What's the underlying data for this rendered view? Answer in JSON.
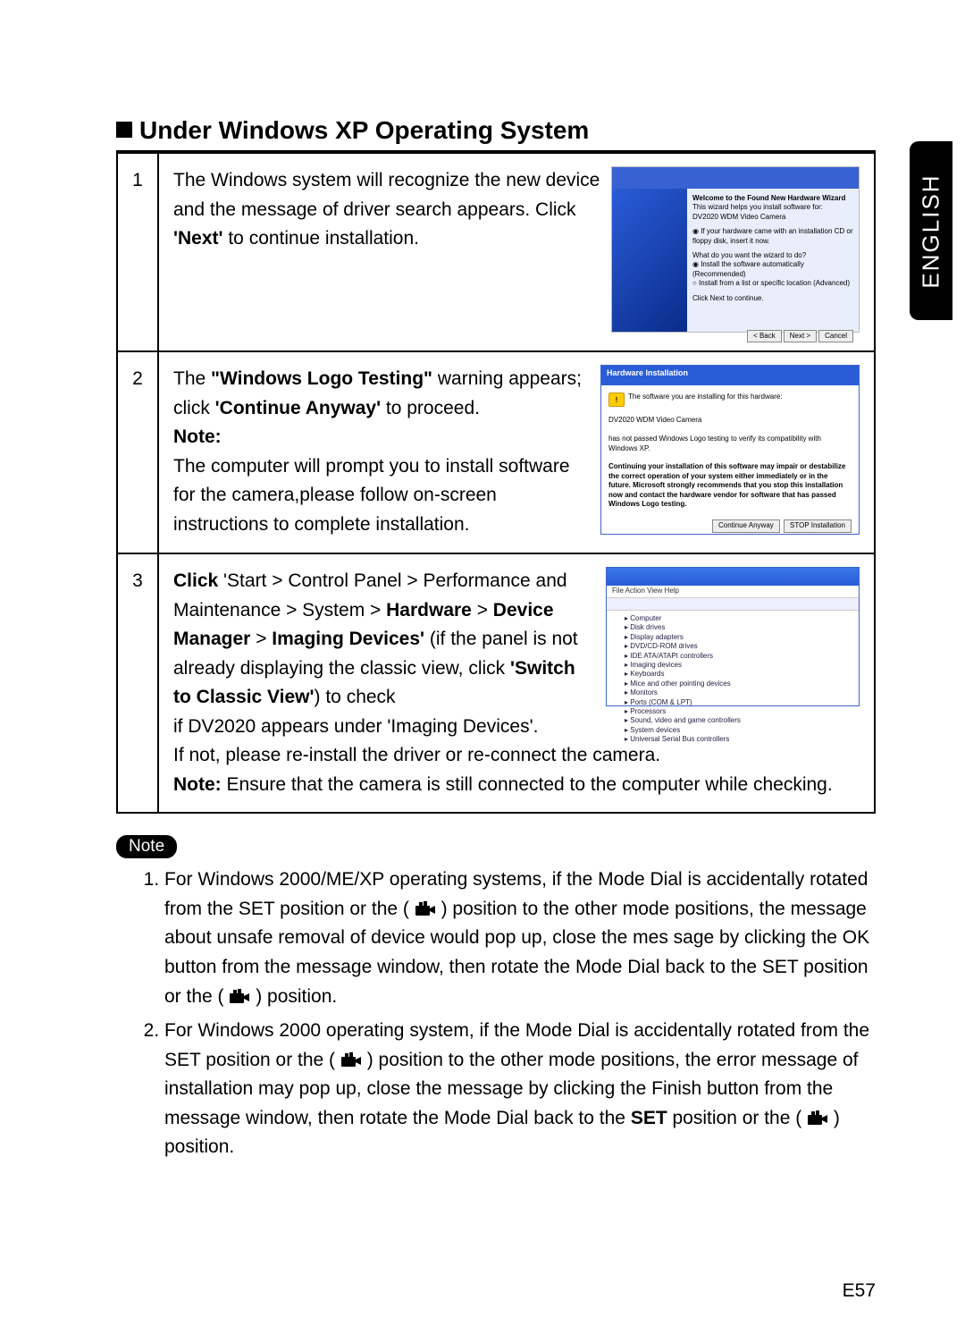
{
  "side_tab": "ENGLISH",
  "section_title": "Under Windows XP Operating System",
  "steps": [
    {
      "num": "1",
      "body_html": "The Windows system will recognize the new device and the message of driver search appears. Click <b>'Next'</b> to continue installation.",
      "screenshot": "wizard"
    },
    {
      "num": "2",
      "body_html": "The <b>\"Windows Logo Testing\"</b> warning appears; click <b>'Continue Anyway'</b> to proceed.<br><b>Note:</b><br>The computer will prompt you to install software for the camera,please follow on-screen instructions to complete installation.",
      "screenshot": "warning"
    },
    {
      "num": "3",
      "body_html": "<b>Click</b> 'Start > Control Panel > Performance and Maintenance > System > <b>Hardware</b> > <b>Device Manager</b> > <b>Imaging Devices'</b> (if the panel is not already displaying the classic view, click <b>'Switch to Classic View'</b>) to check<br>if DV2020 appears under 'Imaging Devices'.<br>If not, please re-install the driver or re-connect the camera.<br><b>Note:</b> Ensure that the camera is still connected to the computer while checking.",
      "screenshot": "devmgr"
    }
  ],
  "wizard": {
    "title": "Welcome to the Found New Hardware Wizard",
    "sub": "This wizard helps you install software for:",
    "dev": "DV2020 WDM Video Camera",
    "opt1": "If your hardware came with an installation CD or floppy disk, insert it now.",
    "q": "What do you want the wizard to do?",
    "r1": "Install the software automatically (Recommended)",
    "r2": "Install from a list or specific location (Advanced)",
    "cont": "Click Next to continue.",
    "back": "< Back",
    "next": "Next >",
    "cancel": "Cancel"
  },
  "warning": {
    "header": "Hardware Installation",
    "line1": "The software you are installing for this hardware:",
    "dev": "DV2020 WDM Video Camera",
    "line2": "has not passed Windows Logo testing to verify its compatibility with Windows XP.",
    "body": "Continuing your installation of this software may impair or destabilize the correct operation of your system either immediately or in the future. Microsoft strongly recommends that you stop this installation now and contact the hardware vendor for software that has passed Windows Logo testing.",
    "btn_continue": "Continue Anyway",
    "btn_stop": "STOP Installation"
  },
  "devmgr": {
    "menu": "File  Action  View  Help",
    "tree": [
      "Computer",
      "Disk drives",
      "Display adapters",
      "DVD/CD-ROM drives",
      "IDE ATA/ATAPI controllers",
      "Imaging devices",
      "Keyboards",
      "Mice and other pointing devices",
      "Monitors",
      "Ports (COM & LPT)",
      "Processors",
      "Sound, video and game controllers",
      "System devices",
      "Universal Serial Bus controllers"
    ]
  },
  "note_label": "Note",
  "notes": [
    "For Windows 2000/ME/XP operating systems, if the Mode Dial is accidentally rotated from the SET position or the ( {ICON} ) position to the other mode positions, the message about unsafe removal of device would pop up, close the mes sage by clicking the OK button from the message window, then rotate the Mode Dial back to the SET position or the ( {ICON} ) position.",
    "For Windows 2000 operating system, if the Mode Dial is accidentally rotated from the SET position or the ( {ICON} ) position to the other mode positions, the error message of installation may pop up, close the message by clicking the Finish button from the message window, then rotate the Mode Dial back to the <b>SET</b> position or the ( {ICON} ) position."
  ],
  "page_number": "E57",
  "colors": {
    "text": "#000000",
    "accent_blue": "#2a5cd8",
    "background": "#ffffff"
  }
}
